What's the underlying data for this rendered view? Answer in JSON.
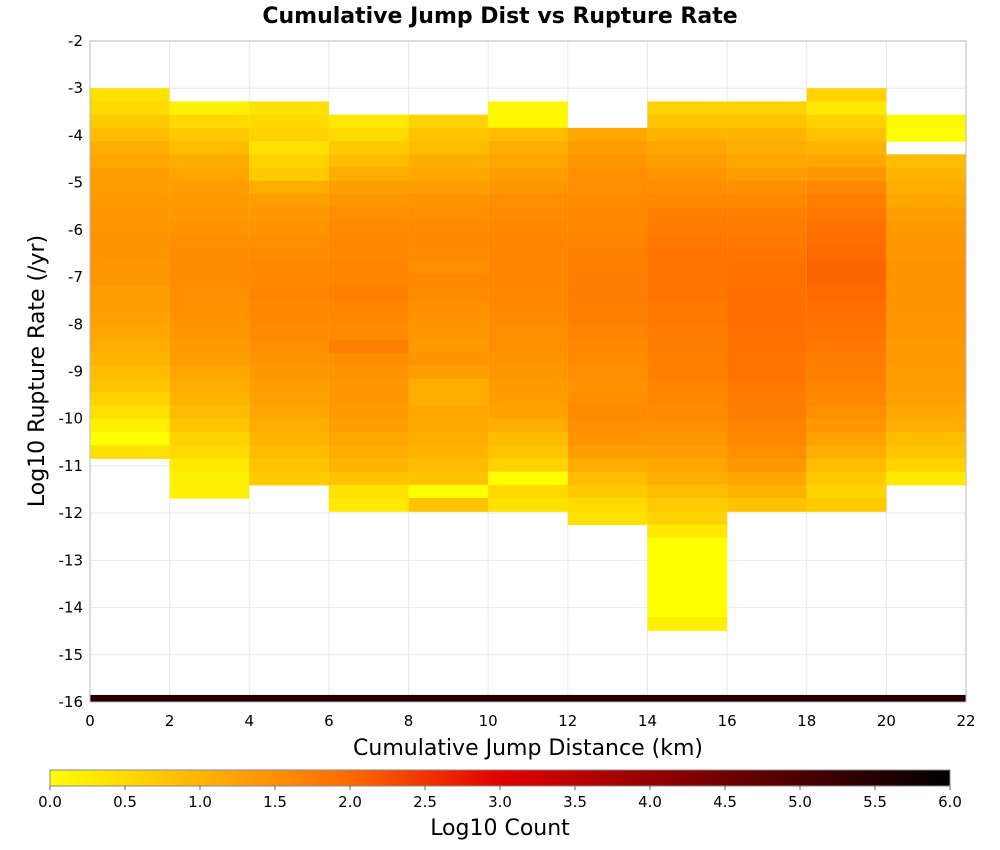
{
  "chart_data": {
    "type": "heatmap",
    "title": "Cumulative Jump Dist vs Rupture Rate",
    "xlabel": "Cumulative Jump Distance (km)",
    "ylabel": "Log10 Rupture Rate (/yr)",
    "xlim": [
      0,
      22
    ],
    "ylim": [
      -16,
      -2
    ],
    "x_ticks": [
      "0",
      "2",
      "4",
      "6",
      "8",
      "10",
      "12",
      "14",
      "16",
      "18",
      "20",
      "22"
    ],
    "y_ticks": [
      "-2",
      "-3",
      "-4",
      "-5",
      "-6",
      "-7",
      "-8",
      "-9",
      "-10",
      "-11",
      "-12",
      "-13",
      "-14",
      "-15",
      "-16"
    ],
    "grid": true,
    "colorbar": {
      "label": "Log10 Count",
      "range": [
        0,
        6
      ],
      "ticks": [
        "0.0",
        "0.5",
        "1.0",
        "1.5",
        "2.0",
        "2.5",
        "3.0",
        "3.5",
        "4.0",
        "4.5",
        "5.0",
        "5.5",
        "6.0"
      ],
      "colors": [
        "#ffff00",
        "#ff6a00",
        "#e00000",
        "#000000"
      ]
    },
    "x_bin_width_km": 2,
    "y_bin_height": 0.28,
    "columns": [
      {
        "x_center": 1,
        "y_top": -3.0,
        "values": [
          0.4,
          0.5,
          0.7,
          0.9,
          1.1,
          1.2,
          1.3,
          1.3,
          1.35,
          1.4,
          1.4,
          1.45,
          1.45,
          1.4,
          1.4,
          1.3,
          1.3,
          1.25,
          1.2,
          1.1,
          1.0,
          0.9,
          0.8,
          0.6,
          0.4,
          0.2,
          0.0,
          0.4
        ]
      },
      {
        "x_center": 3,
        "y_top": -3.28,
        "values": [
          0.2,
          0.5,
          0.7,
          0.9,
          1.1,
          1.2,
          1.3,
          1.35,
          1.4,
          1.45,
          1.5,
          1.55,
          1.55,
          1.55,
          1.5,
          1.5,
          1.45,
          1.4,
          1.35,
          1.3,
          1.2,
          1.1,
          1.0,
          0.9,
          0.8,
          0.6,
          0.5,
          0.3,
          0.2,
          0.2
        ]
      },
      {
        "x_center": 5,
        "y_top": -3.28,
        "values": [
          0.4,
          0.5,
          0.6,
          0.4,
          0.6,
          0.7,
          1.1,
          1.3,
          1.4,
          1.45,
          1.5,
          1.55,
          1.6,
          1.6,
          1.65,
          1.6,
          1.6,
          1.55,
          1.5,
          1.45,
          1.4,
          1.3,
          1.25,
          1.2,
          1.1,
          1.0,
          0.9,
          0.8,
          0.7
        ]
      },
      {
        "x_center": 7,
        "y_top": -3.56,
        "values": [
          0.3,
          0.5,
          0.7,
          0.9,
          1.1,
          1.3,
          1.4,
          1.5,
          1.55,
          1.6,
          1.6,
          1.65,
          1.65,
          1.7,
          1.65,
          1.6,
          1.55,
          1.7,
          1.5,
          1.45,
          1.4,
          1.4,
          1.35,
          1.3,
          1.2,
          1.1,
          1.0,
          0.8,
          0.4,
          0.3
        ]
      },
      {
        "x_center": 9,
        "y_top": -3.56,
        "values": [
          0.6,
          0.8,
          0.9,
          1.1,
          1.2,
          1.3,
          1.45,
          1.5,
          1.55,
          1.6,
          1.55,
          1.5,
          1.6,
          1.55,
          1.5,
          1.45,
          1.4,
          1.35,
          1.45,
          1.3,
          1.1,
          1.1,
          1.2,
          1.15,
          1.1,
          1.0,
          0.9,
          0.8,
          0.0,
          0.8
        ]
      },
      {
        "x_center": 11,
        "y_top": -3.28,
        "values": [
          0.1,
          0.1,
          0.9,
          1.1,
          1.2,
          1.3,
          1.4,
          1.5,
          1.55,
          1.6,
          1.65,
          1.65,
          1.65,
          1.65,
          1.6,
          1.6,
          1.55,
          1.5,
          1.5,
          1.45,
          1.4,
          1.35,
          1.3,
          1.25,
          1.1,
          0.9,
          0.8,
          0.6,
          0.0,
          0.5,
          0.4
        ]
      },
      {
        "x_center": 13,
        "y_top": -3.84,
        "values": [
          1.2,
          1.3,
          1.4,
          1.5,
          1.5,
          1.55,
          1.6,
          1.6,
          1.65,
          1.7,
          1.7,
          1.75,
          1.75,
          1.7,
          1.7,
          1.65,
          1.6,
          1.55,
          1.5,
          1.45,
          1.5,
          1.55,
          1.5,
          1.45,
          1.3,
          1.1,
          0.9,
          0.7,
          0.5,
          0.4
        ]
      },
      {
        "x_center": 15,
        "y_top": -3.28,
        "values": [
          0.6,
          0.8,
          1.0,
          1.2,
          1.3,
          1.4,
          1.5,
          1.6,
          1.7,
          1.75,
          1.8,
          1.85,
          1.85,
          1.85,
          1.85,
          1.8,
          1.8,
          1.75,
          1.75,
          1.7,
          1.7,
          1.65,
          1.6,
          1.55,
          1.5,
          1.4,
          1.3,
          1.2,
          1.1,
          0.9,
          0.7,
          0.6,
          0.3,
          0.0,
          0.0,
          0.0,
          0.0,
          0.0,
          0.0,
          0.2
        ]
      },
      {
        "x_center": 17,
        "y_top": -3.28,
        "values": [
          0.6,
          0.8,
          1.0,
          1.1,
          1.2,
          1.3,
          1.5,
          1.6,
          1.7,
          1.75,
          1.8,
          1.85,
          1.9,
          1.9,
          1.95,
          1.95,
          1.95,
          1.9,
          1.9,
          1.85,
          1.85,
          1.8,
          1.75,
          1.75,
          1.65,
          1.6,
          1.5,
          1.4,
          1.2,
          1.0,
          0.8
        ]
      },
      {
        "x_center": 19,
        "y_top": -3.0,
        "values": [
          0.6,
          0.3,
          0.6,
          0.8,
          1.0,
          1.2,
          1.4,
          1.6,
          1.7,
          1.8,
          1.9,
          1.95,
          2.0,
          2.05,
          2.05,
          2.0,
          1.95,
          1.9,
          1.85,
          1.8,
          1.75,
          1.7,
          1.65,
          1.6,
          1.5,
          1.4,
          1.25,
          1.1,
          0.9,
          0.7,
          0.6,
          0.7
        ]
      },
      {
        "x_center": 21,
        "y_top": -3.56,
        "values": [
          0.1,
          0.0,
          null,
          0.9,
          1.0,
          1.1,
          1.2,
          1.3,
          1.35,
          1.4,
          1.4,
          1.45,
          1.45,
          1.45,
          1.45,
          1.4,
          1.4,
          1.35,
          1.35,
          1.3,
          1.3,
          1.25,
          1.2,
          1.1,
          0.9,
          0.8,
          0.6,
          0.3
        ]
      }
    ],
    "bottom_band": {
      "x_range": [
        0,
        22
      ],
      "y_range": [
        -16.0,
        -15.85
      ],
      "value": 5.5
    }
  }
}
